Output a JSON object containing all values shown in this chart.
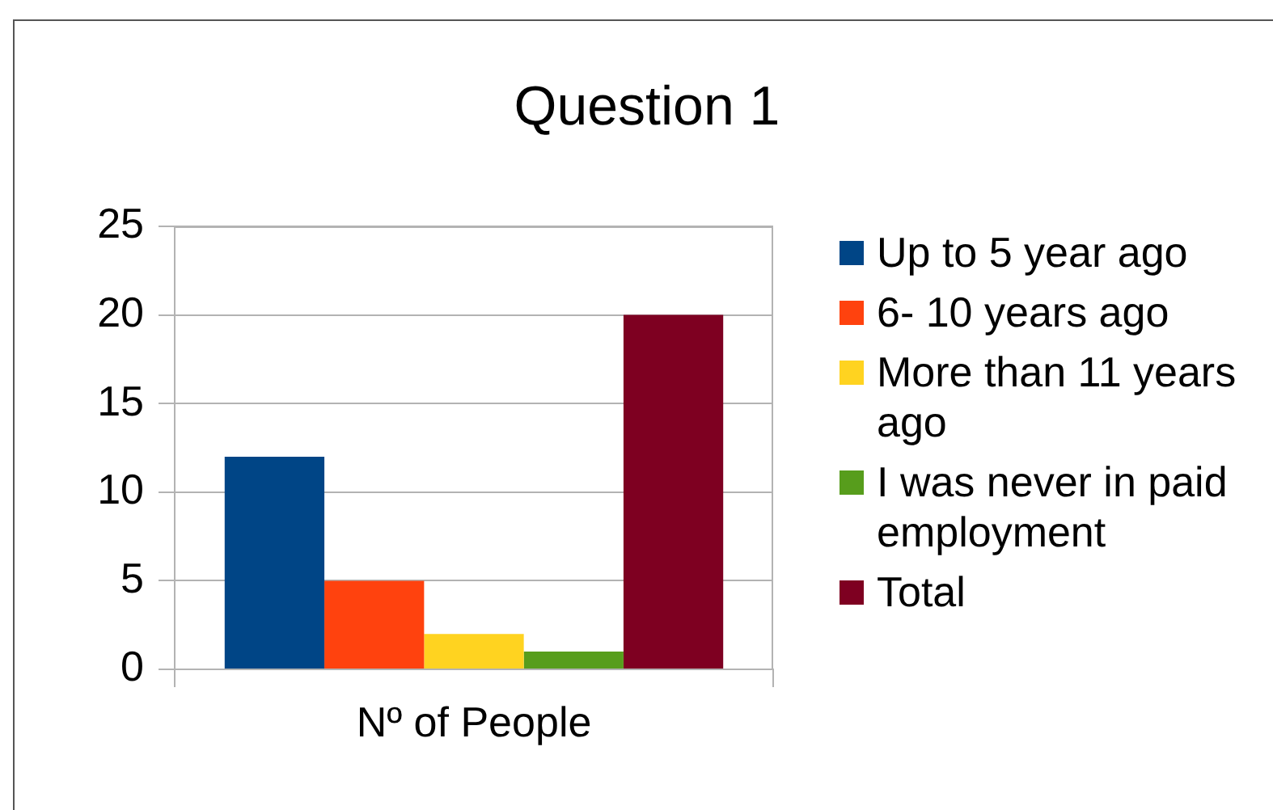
{
  "chart_data": {
    "type": "bar",
    "title": "Question 1",
    "xlabel": "Nº of People",
    "categories": [
      null
    ],
    "series": [
      {
        "name": "Up to 5 year ago",
        "color": "#004586",
        "values": [
          12
        ]
      },
      {
        "name": "6- 10 years ago",
        "color": "#ff420e",
        "values": [
          5
        ]
      },
      {
        "name": "More than 11 years ago",
        "color": "#ffd320",
        "values": [
          2
        ]
      },
      {
        "name": "I was never in paid employment",
        "color": "#579d1c",
        "values": [
          1
        ]
      },
      {
        "name": "Total",
        "color": "#7e0021",
        "values": [
          20
        ]
      }
    ],
    "ylim": [
      0,
      25
    ],
    "yticks": [
      0,
      5,
      10,
      15,
      20,
      25
    ],
    "grid": "y",
    "legend": "right",
    "tick_labels": "y"
  }
}
